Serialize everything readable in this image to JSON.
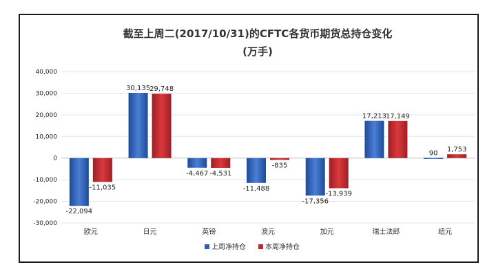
{
  "chart_data": {
    "type": "bar",
    "title": "截至上周二(2017/10/31)的CFTC各货币期货总持仓变化",
    "subtitle": "(万手)",
    "xlabel": "",
    "ylabel": "",
    "ylim": [
      -30000,
      40000
    ],
    "yticks": [
      "40,000",
      "30,000",
      "20,000",
      "10,000",
      "0",
      "-10,000",
      "-20,000",
      "-30,000"
    ],
    "ytick_values": [
      40000,
      30000,
      20000,
      10000,
      0,
      -10000,
      -20000,
      -30000
    ],
    "grid": true,
    "legend_position": "bottom",
    "categories": [
      "欧元",
      "日元",
      "英镑",
      "澳元",
      "加元",
      "瑞士法郎",
      "纽元"
    ],
    "series": [
      {
        "name": "上周净持仓",
        "color": "#2f5fb3",
        "values": [
          -22094,
          30135,
          -4467,
          -11488,
          -17356,
          17213,
          90
        ],
        "labels": [
          "-22,094",
          "30,135",
          "-4,467",
          "-11,488",
          "-17,356",
          "17,213",
          "90"
        ]
      },
      {
        "name": "本周净持仓",
        "color": "#c0282d",
        "values": [
          -11035,
          29748,
          -4531,
          -835,
          -13939,
          17149,
          1753
        ],
        "labels": [
          "-11,035",
          "29,748",
          "-4,531",
          "-835",
          "-13,939",
          "17,149",
          "1,753"
        ]
      }
    ]
  }
}
